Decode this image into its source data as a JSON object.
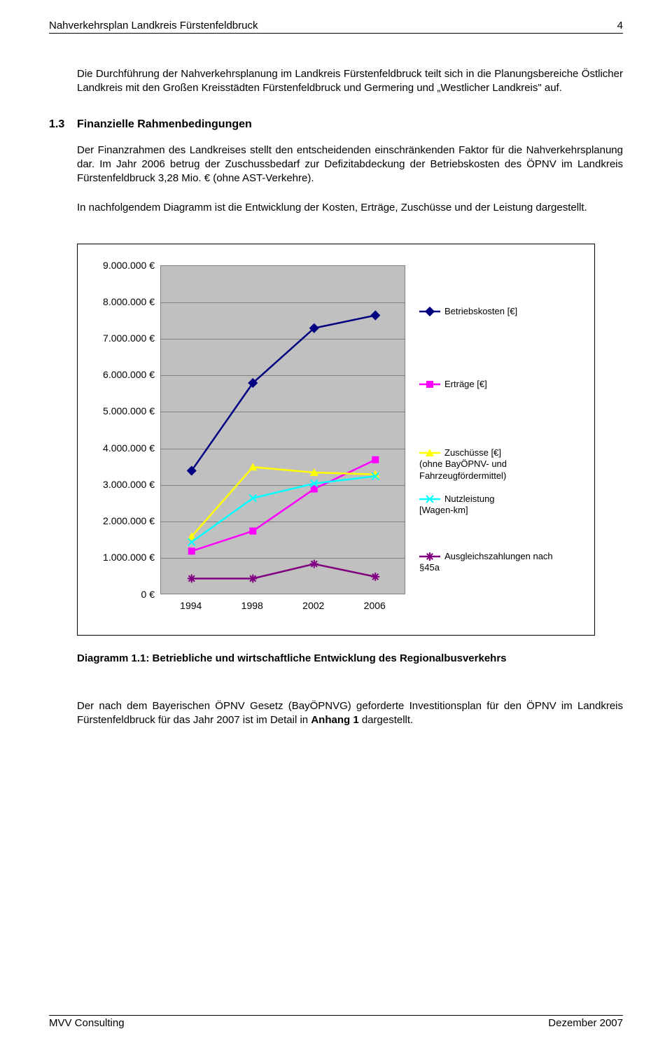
{
  "header": {
    "title": "Nahverkehrsplan Landkreis Fürstenfeldbruck",
    "page": "4"
  },
  "para1": "Die Durchführung der Nahverkehrsplanung im Landkreis Fürstenfeldbruck teilt sich in die Planungsbereiche Östlicher Landkreis mit den Großen Kreisstädten Fürstenfeldbruck und Germering und „Westlicher Landkreis\" auf.",
  "section": {
    "num": "1.3",
    "title": "Finanzielle Rahmenbedingungen"
  },
  "para2": "Der Finanzrahmen des Landkreises stellt den entscheidenden einschränkenden Faktor für die Nahverkehrsplanung dar. Im Jahr 2006 betrug der Zuschussbedarf zur Defizitabdeckung der Betriebskosten des ÖPNV im Landkreis Fürstenfeldbruck 3,28 Mio. € (ohne AST-Verkehre).",
  "para3": "In nachfolgendem Diagramm ist die Entwicklung der Kosten, Erträge, Zuschüsse und der Leistung dargestellt.",
  "chart": {
    "type": "line",
    "plot_bg": "#c0c0c0",
    "grid_color": "#808080",
    "ylim": [
      0,
      9000000
    ],
    "ytick_step": 1000000,
    "yticks": [
      "0 €",
      "1.000.000 €",
      "2.000.000 €",
      "3.000.000 €",
      "4.000.000 €",
      "5.000.000 €",
      "6.000.000 €",
      "7.000.000 €",
      "8.000.000 €",
      "9.000.000 €"
    ],
    "xlabels": [
      "1994",
      "1998",
      "2002",
      "2006"
    ],
    "series": [
      {
        "name": "Betriebskosten [€]",
        "color": "#000080",
        "marker": "diamond",
        "values": [
          3400000,
          5800000,
          7300000,
          7650000
        ],
        "legend_top": 58
      },
      {
        "name": "Erträge [€]",
        "color": "#ff00ff",
        "marker": "square",
        "values": [
          1200000,
          1750000,
          2900000,
          3700000
        ],
        "legend_top": 162
      },
      {
        "name": "Zuschüsse [€]\n(ohne BayÖPNV- und Fahrzeugfördermittel)",
        "color": "#ffff00",
        "marker": "triangle",
        "values": [
          1600000,
          3500000,
          3350000,
          3300000
        ],
        "legend_top": 260
      },
      {
        "name": "Nutzleistung\n[Wagen-km]",
        "color": "#00ffff",
        "marker": "x",
        "values": [
          1450000,
          2650000,
          3050000,
          3250000
        ],
        "legend_top": 326
      },
      {
        "name": "Ausgleichszahlungen nach §45a",
        "color": "#800080",
        "marker": "star",
        "values": [
          450000,
          450000,
          850000,
          500000
        ],
        "legend_top": 408
      }
    ]
  },
  "caption": {
    "bold": "Diagramm 1.1: Betriebliche und wirtschaftliche Entwicklung des Regionalbusverkehrs"
  },
  "para4_a": "Der nach dem Bayerischen ÖPNV Gesetz (BayÖPNVG) geforderte Investitionsplan für den ÖPNV im Landkreis Fürstenfeldbruck für das Jahr 2007 ist im Detail in ",
  "para4_b": "Anhang 1",
  "para4_c": " dargestellt.",
  "footer": {
    "left": "MVV Consulting",
    "right": "Dezember 2007"
  }
}
